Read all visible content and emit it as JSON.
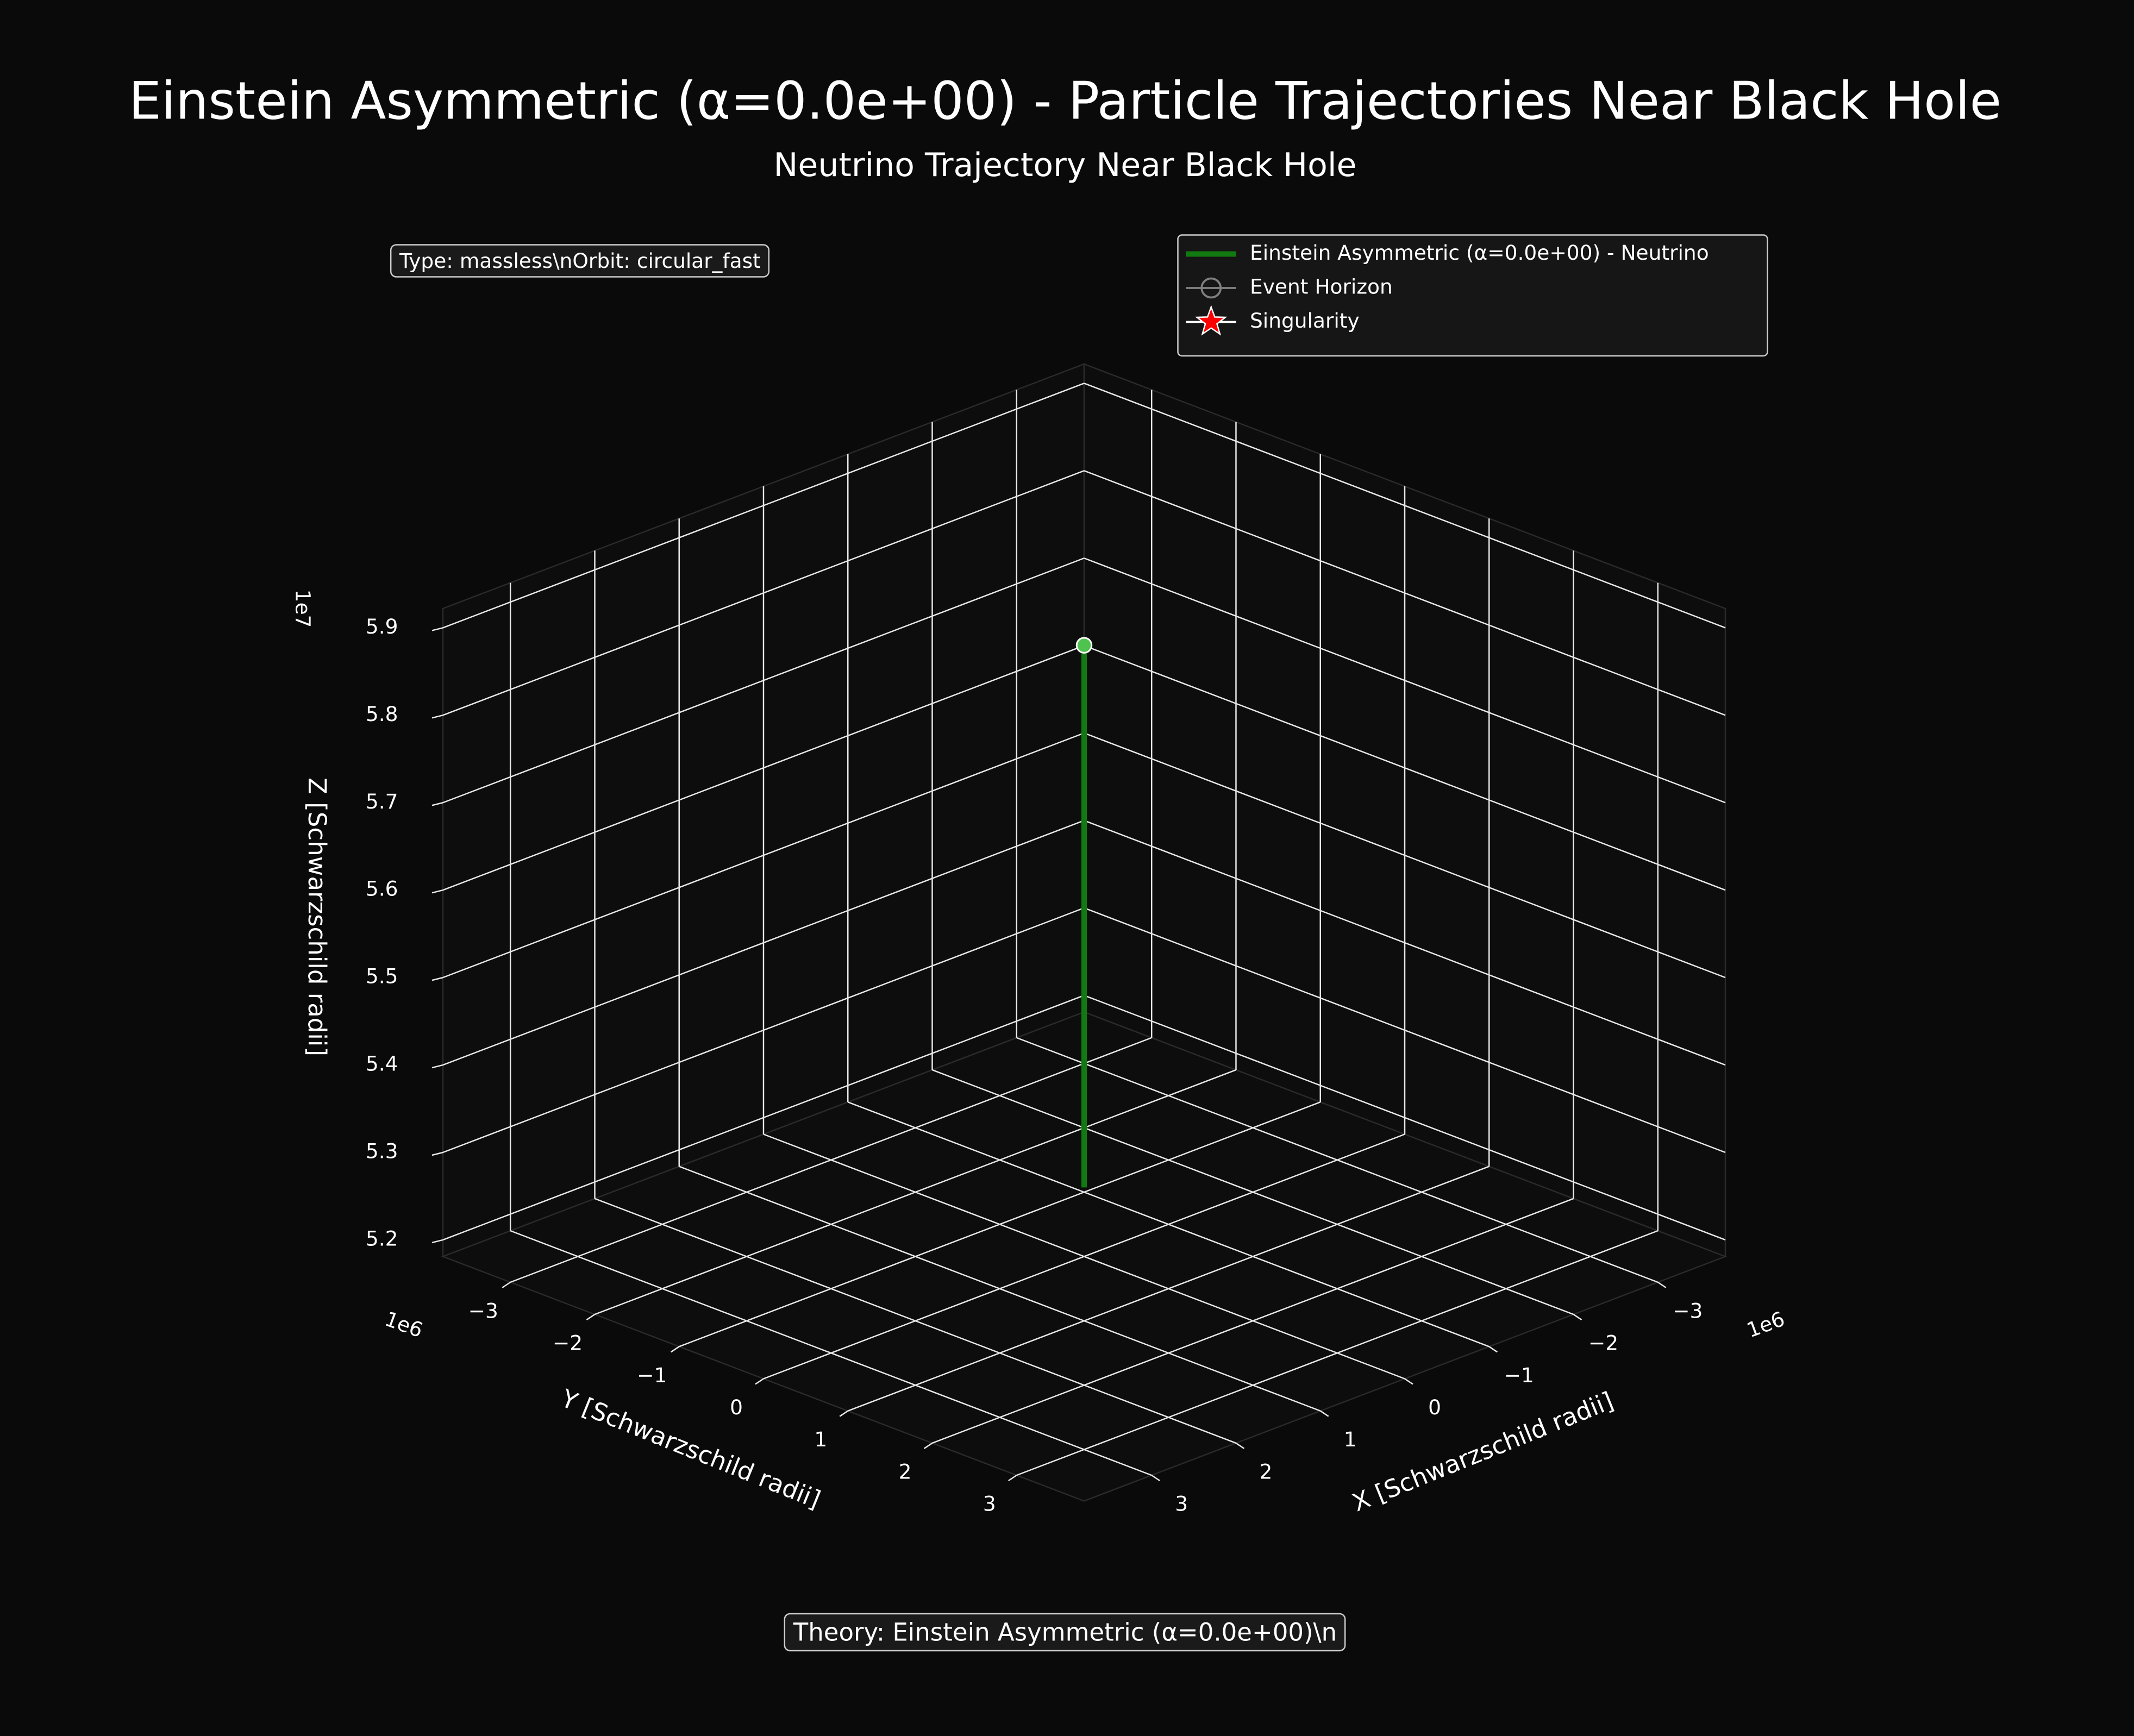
{
  "chart_data": {
    "type": "line3d",
    "title": "Einstein Asymmetric (α=0.0e+00) - Particle Trajectories Near Black Hole",
    "subtitle": "Neutrino Trajectory Near Black Hole",
    "annotations": [
      "Type: massless\\nOrbit: circular_fast",
      "Theory: Einstein Asymmetric (α=0.0e+00)\\n"
    ],
    "xlabel": "X [Schwarzschild radii]",
    "ylabel": "Y [Schwarzschild radii]",
    "zlabel": "Z [Schwarzschild radii]",
    "x_offset": "1e6",
    "y_offset": "1e6",
    "z_offset": "1e7",
    "xlim": [
      -3.8,
      3.8
    ],
    "ylim": [
      -3.8,
      3.8
    ],
    "zlim": [
      5.181,
      5.922
    ],
    "xticks": [
      {
        "value": -3,
        "label": "−3"
      },
      {
        "value": -2,
        "label": "−2"
      },
      {
        "value": -1,
        "label": "−1"
      },
      0,
      1,
      2,
      3
    ],
    "yticks": [
      {
        "value": -3,
        "label": "−3"
      },
      {
        "value": -2,
        "label": "−2"
      },
      {
        "value": -1,
        "label": "−1"
      },
      0,
      1,
      2,
      3
    ],
    "zticks": [
      5.2,
      5.3,
      5.4,
      5.5,
      5.6,
      5.7,
      5.8,
      5.9
    ],
    "series": [
      {
        "name": "Einstein Asymmetric (α=0.0e+00) - Neutrino",
        "color": "#117a11",
        "start_color": "#4fc24f",
        "x": [
          0,
          0
        ],
        "y": [
          0,
          0
        ],
        "z": [
          5.88,
          5.26
        ]
      }
    ],
    "markers": [
      {
        "name": "Event Horizon",
        "color": "#808080"
      },
      {
        "name": "Singularity",
        "color": "#ff0000"
      }
    ],
    "legend": "upper right",
    "grid": true
  }
}
